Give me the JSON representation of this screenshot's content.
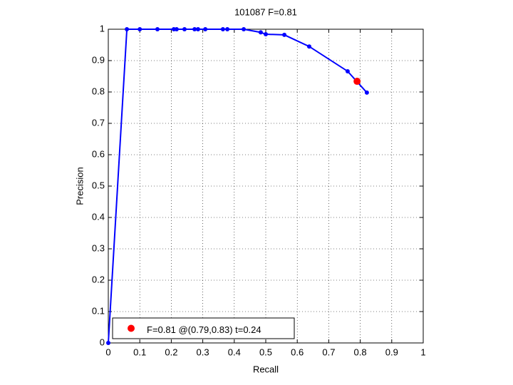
{
  "chart_data": {
    "type": "line",
    "title": "101087 F=0.81",
    "x_label": "Recall",
    "y_label": "Precision",
    "xlim": [
      0,
      1
    ],
    "ylim": [
      0,
      1
    ],
    "xticks": [
      0,
      0.1,
      0.2,
      0.3,
      0.4,
      0.5,
      0.6,
      0.7,
      0.8,
      0.9,
      1
    ],
    "yticks": [
      0,
      0.1,
      0.2,
      0.3,
      0.4,
      0.5,
      0.6,
      0.7,
      0.8,
      0.9,
      1
    ],
    "grid": true,
    "legend_position": "lower left",
    "series": [
      {
        "color": "#0000ff",
        "markers": true,
        "line": true,
        "x": [
          0,
          0.059,
          0.1,
          0.156,
          0.208,
          0.217,
          0.242,
          0.274,
          0.285,
          0.308,
          0.364,
          0.378,
          0.43,
          0.484,
          0.5,
          0.559,
          0.638,
          0.76,
          0.821
        ],
        "values": [
          0,
          1,
          1,
          1,
          1,
          1,
          1,
          1,
          1,
          1,
          1,
          1,
          1,
          0.99,
          0.984,
          0.982,
          0.945,
          0.866,
          0.798
        ]
      },
      {
        "name": "F=0.81 @(0.79,0.83) t=0.24",
        "color": "#ff0000",
        "markers": true,
        "line": false,
        "in_legend": true,
        "x": [
          0.79
        ],
        "values": [
          0.834
        ]
      }
    ]
  }
}
